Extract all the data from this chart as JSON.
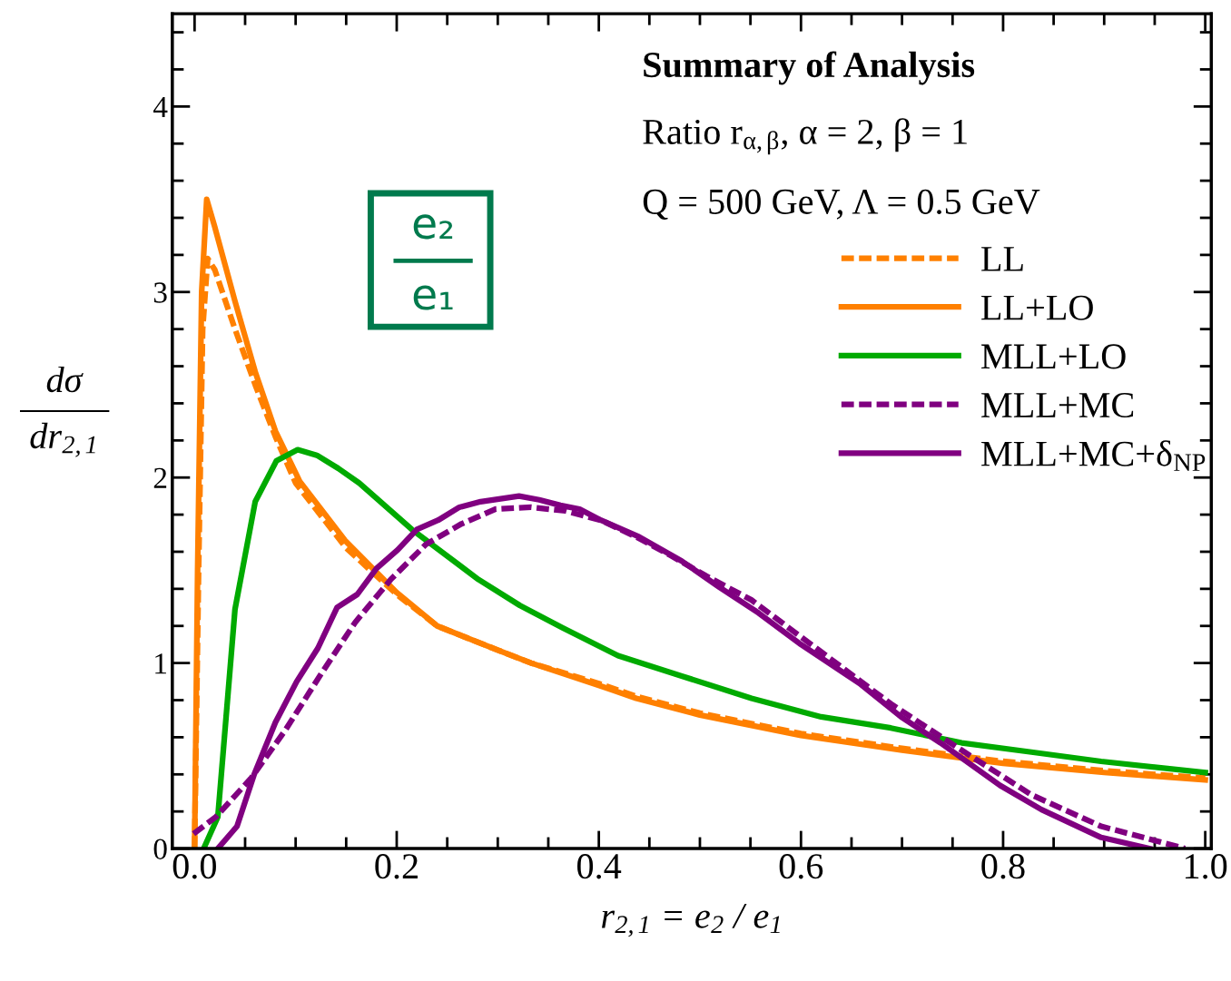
{
  "chart_data": {
    "type": "line",
    "title": "Summary of Analysis",
    "subtitle": "Ratio r$_{α,β}$, α = 2, β = 1",
    "annotations": [
      "Q = 500 GeV, Λ = 0.5 GeV",
      "e₂",
      "e₁"
    ],
    "xlabel": "r$_{2,1}$ = e$_{2}$ / e$_{1}$",
    "ylabel": "dσ\ndr$_{2,1}$",
    "xlim": [
      -0.022,
      1.006
    ],
    "ylim": [
      0,
      4.5
    ],
    "xticks": [
      {
        "value": 0,
        "label": "0.0"
      },
      {
        "value": 0.05,
        "label": null
      },
      {
        "value": 0.1,
        "label": null
      },
      {
        "value": 0.15,
        "label": null
      },
      0.2,
      {
        "value": 0.25,
        "label": null
      },
      {
        "value": 0.3,
        "label": null
      },
      {
        "value": 0.35,
        "label": null
      },
      0.4,
      {
        "value": 0.45,
        "label": null
      },
      {
        "value": 0.5,
        "label": null
      },
      {
        "value": 0.55,
        "label": null
      },
      0.6,
      {
        "value": 0.65,
        "label": null
      },
      {
        "value": 0.7,
        "label": null
      },
      {
        "value": 0.75,
        "label": null
      },
      0.8,
      {
        "value": 0.85,
        "label": null
      },
      {
        "value": 0.9,
        "label": null
      },
      {
        "value": 0.95,
        "label": null
      },
      {
        "value": 1,
        "label": "1.0"
      }
    ],
    "yticks": [
      0,
      {
        "value": 0.2,
        "label": null
      },
      {
        "value": 0.4,
        "label": null
      },
      {
        "value": 0.6,
        "label": null
      },
      {
        "value": 0.8,
        "label": null
      },
      1,
      {
        "value": 1.2,
        "label": null
      },
      {
        "value": 1.4,
        "label": null
      },
      {
        "value": 1.6,
        "label": null
      },
      {
        "value": 1.8,
        "label": null
      },
      2,
      {
        "value": 2.2,
        "label": null
      },
      {
        "value": 2.4,
        "label": null
      },
      {
        "value": 2.6,
        "label": null
      },
      {
        "value": 2.8,
        "label": null
      },
      3,
      {
        "value": 3.2,
        "label": null
      },
      {
        "value": 3.4,
        "label": null
      },
      {
        "value": 3.6,
        "label": null
      },
      {
        "value": 3.8,
        "label": null
      },
      4,
      {
        "value": 4.2,
        "label": null
      },
      {
        "value": 4.4,
        "label": null
      }
    ],
    "grid": false,
    "legend": "top right",
    "marker": "none",
    "series": [
      {
        "name": "LL",
        "color": "#ff8000",
        "line_style": "dashed",
        "x": [
          0,
          0.004,
          0.008,
          0.013,
          0.02,
          0.04,
          0.06,
          0.08,
          0.1,
          0.15,
          0.2,
          0.24,
          0.3,
          0.333,
          0.4,
          0.437,
          0.5,
          0.6,
          0.7,
          0.8,
          0.9,
          1.0
        ],
        "values": [
          0,
          1.5,
          2.8,
          3.18,
          3.12,
          2.8,
          2.5,
          2.22,
          1.97,
          1.62,
          1.37,
          1.2,
          1.07,
          1.0,
          0.89,
          0.82,
          0.73,
          0.62,
          0.54,
          0.47,
          0.42,
          0.38
        ]
      },
      {
        "name": "LL+LO",
        "color": "#ff8000",
        "line_style": "solid",
        "x": [
          0,
          0.003,
          0.007,
          0.012,
          0.02,
          0.04,
          0.06,
          0.08,
          0.104,
          0.149,
          0.2,
          0.24,
          0.3,
          0.333,
          0.4,
          0.437,
          0.5,
          0.6,
          0.7,
          0.8,
          0.9,
          1.0
        ],
        "values": [
          0,
          1.5,
          3.0,
          3.5,
          3.35,
          2.95,
          2.57,
          2.25,
          1.98,
          1.66,
          1.38,
          1.2,
          1.07,
          1.0,
          0.88,
          0.81,
          0.72,
          0.61,
          0.53,
          0.46,
          0.41,
          0.37
        ]
      },
      {
        "name": "MLL+LO",
        "color": "#00aa00",
        "line_style": "solid",
        "x": [
          0.009,
          0.023,
          0.04,
          0.06,
          0.081,
          0.102,
          0.121,
          0.142,
          0.163,
          0.215,
          0.281,
          0.322,
          0.364,
          0.419,
          0.482,
          0.551,
          0.62,
          0.689,
          0.759,
          0.828,
          0.897,
          1.0
        ],
        "values": [
          0,
          0.17,
          1.29,
          1.87,
          2.09,
          2.15,
          2.12,
          2.05,
          1.97,
          1.72,
          1.45,
          1.31,
          1.19,
          1.04,
          0.93,
          0.81,
          0.71,
          0.65,
          0.57,
          0.52,
          0.47,
          0.41
        ]
      },
      {
        "name": "MLL+MC",
        "color": "#800080",
        "line_style": "dashed",
        "x": [
          -0.001,
          0.021,
          0.056,
          0.09,
          0.125,
          0.159,
          0.194,
          0.229,
          0.264,
          0.298,
          0.333,
          0.367,
          0.402,
          0.437,
          0.471,
          0.506,
          0.551,
          0.62,
          0.689,
          0.759,
          0.828,
          0.897,
          0.98
        ],
        "values": [
          0.08,
          0.17,
          0.38,
          0.64,
          0.94,
          1.22,
          1.45,
          1.64,
          1.75,
          1.83,
          1.84,
          1.82,
          1.77,
          1.68,
          1.58,
          1.47,
          1.34,
          1.06,
          0.78,
          0.53,
          0.29,
          0.12,
          0
        ]
      },
      {
        "name": "MLL+MC+δ$_{NP}$",
        "color": "#800080",
        "line_style": "solid",
        "x": [
          0.023,
          0.042,
          0.059,
          0.08,
          0.101,
          0.122,
          0.141,
          0.161,
          0.18,
          0.201,
          0.22,
          0.241,
          0.262,
          0.283,
          0.321,
          0.341,
          0.362,
          0.381,
          0.402,
          0.44,
          0.482,
          0.519,
          0.558,
          0.6,
          0.658,
          0.699,
          0.738,
          0.797,
          0.838,
          0.897,
          0.945
        ],
        "values": [
          0,
          0.12,
          0.4,
          0.68,
          0.9,
          1.08,
          1.3,
          1.37,
          1.51,
          1.61,
          1.72,
          1.77,
          1.84,
          1.87,
          1.9,
          1.88,
          1.85,
          1.83,
          1.77,
          1.68,
          1.55,
          1.41,
          1.27,
          1.1,
          0.89,
          0.71,
          0.57,
          0.34,
          0.21,
          0.06,
          0
        ]
      }
    ]
  }
}
